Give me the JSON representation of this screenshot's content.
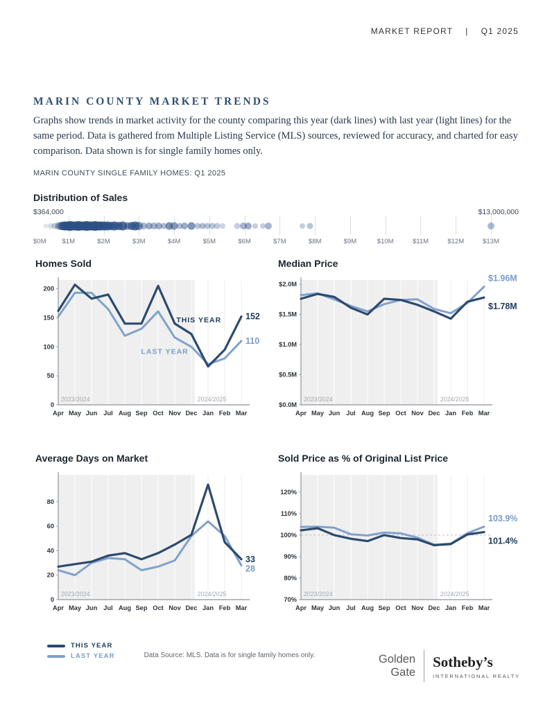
{
  "header": {
    "report_label": "MARKET REPORT",
    "divider": "|",
    "quarter": "Q1 2025"
  },
  "intro": {
    "title": "MARIN COUNTY MARKET TRENDS",
    "body": "Graphs show trends in market activity for the county comparing this year (dark lines) with last year (light lines) for the same period. Data is gathered from Multiple Listing Service (MLS) sources, reviewed for accuracy, and charted for easy comparison. Data shown is for single family homes only."
  },
  "subhead": "MARIN COUNTY SINGLE FAMILY HOMES: Q1 2025",
  "colors": {
    "this_line": "#2c4a6e",
    "this_text": "#1d3a5c",
    "last_line": "#80a1cc",
    "last_text": "#7a9cc8",
    "dot": "#2d4f86",
    "band": "#efefef",
    "axis": "#9fa4a9",
    "grid_white": "#ffffff",
    "grid_gray": "#ececec",
    "tick_text": "#2d3238",
    "year_text": "#a3a7ac",
    "dashed": "#babdc1"
  },
  "months": [
    "Apr",
    "May",
    "Jun",
    "Jul",
    "Aug",
    "Sep",
    "Oct",
    "Nov",
    "Dec",
    "Jan",
    "Feb",
    "Mar"
  ],
  "distribution": {
    "title": "Distribution of Sales",
    "min_label": "$364,000",
    "max_label": "$13,000,000",
    "axis_ticks": [
      "$0M",
      "$1M",
      "$2M",
      "$3M",
      "$4M",
      "$5M",
      "$6M",
      "$7M",
      "$8M",
      "$9M",
      "$10M",
      "$11M",
      "$12M",
      "$13M"
    ],
    "dots": [
      [
        0.36,
        7,
        0.15
      ],
      [
        0.5,
        8,
        0.2
      ],
      [
        0.62,
        9,
        0.3
      ],
      [
        0.72,
        11,
        0.5
      ],
      [
        0.8,
        12,
        0.75
      ],
      [
        0.88,
        13,
        0.9
      ],
      [
        0.96,
        13,
        0.92
      ],
      [
        1.04,
        14,
        0.95
      ],
      [
        1.12,
        13,
        0.92
      ],
      [
        1.2,
        13,
        0.95
      ],
      [
        1.28,
        14,
        0.92
      ],
      [
        1.36,
        13,
        0.95
      ],
      [
        1.44,
        13,
        0.9
      ],
      [
        1.52,
        14,
        0.92
      ],
      [
        1.6,
        13,
        0.95
      ],
      [
        1.68,
        13,
        0.9
      ],
      [
        1.76,
        14,
        0.9
      ],
      [
        1.84,
        13,
        0.88
      ],
      [
        1.92,
        13,
        0.9
      ],
      [
        2.0,
        13,
        0.85
      ],
      [
        2.1,
        13,
        0.82
      ],
      [
        2.2,
        12,
        0.8
      ],
      [
        2.3,
        13,
        0.85
      ],
      [
        2.42,
        12,
        0.78
      ],
      [
        2.55,
        13,
        0.82
      ],
      [
        2.68,
        11,
        0.6
      ],
      [
        2.8,
        12,
        0.72
      ],
      [
        2.9,
        13,
        0.78
      ],
      [
        3.0,
        12,
        0.6
      ],
      [
        3.14,
        10,
        0.42
      ],
      [
        3.28,
        10,
        0.48
      ],
      [
        3.42,
        10,
        0.42
      ],
      [
        3.56,
        10,
        0.46
      ],
      [
        3.7,
        9,
        0.38
      ],
      [
        3.86,
        11,
        0.62
      ],
      [
        4.0,
        11,
        0.56
      ],
      [
        4.16,
        9,
        0.38
      ],
      [
        4.3,
        10,
        0.46
      ],
      [
        4.5,
        11,
        0.6
      ],
      [
        4.66,
        9,
        0.34
      ],
      [
        4.8,
        9,
        0.38
      ],
      [
        4.95,
        9,
        0.34
      ],
      [
        5.08,
        9,
        0.33
      ],
      [
        5.22,
        9,
        0.3
      ],
      [
        5.38,
        8,
        0.25
      ],
      [
        5.8,
        9,
        0.28
      ],
      [
        5.96,
        10,
        0.42
      ],
      [
        6.1,
        10,
        0.46
      ],
      [
        6.3,
        8,
        0.28
      ],
      [
        6.52,
        8,
        0.28
      ],
      [
        6.68,
        10,
        0.42
      ],
      [
        7.65,
        8,
        0.28
      ],
      [
        7.85,
        9,
        0.33
      ],
      [
        13.0,
        10,
        0.4
      ]
    ]
  },
  "chart_data": [
    {
      "type": "line",
      "title": "Homes Sold",
      "ymin": 0,
      "ymax": 215,
      "yticks": [
        {
          "v": 0,
          "label": "0"
        },
        {
          "v": 50,
          "label": "50"
        },
        {
          "v": 100,
          "label": "100"
        },
        {
          "v": 150,
          "label": "150"
        },
        {
          "v": 200,
          "label": "200"
        }
      ],
      "series": [
        {
          "name": "THIS YEAR",
          "key": "this",
          "values": [
            162,
            207,
            183,
            190,
            140,
            140,
            205,
            140,
            122,
            66,
            95,
            152
          ]
        },
        {
          "name": "LAST YEAR",
          "key": "last",
          "values": [
            152,
            193,
            193,
            165,
            119,
            131,
            161,
            116,
            100,
            70,
            80,
            110
          ]
        }
      ],
      "annotations": [
        {
          "text": "THIS YEAR",
          "series": "this",
          "month": 8.45,
          "value": 142
        },
        {
          "text": "LAST YEAR",
          "series": "last",
          "month": 6.4,
          "value": 88
        }
      ],
      "end_labels": [
        {
          "series": "this",
          "text": "152",
          "dy": 4
        },
        {
          "series": "last",
          "text": "110",
          "dy": 4
        }
      ],
      "year_labels": [
        "2023/2024",
        "2024/2025"
      ],
      "shade_end": 8.2
    },
    {
      "type": "line",
      "title": "Median Price",
      "ymin": 0,
      "ymax": 2.07,
      "yticks": [
        {
          "v": 0,
          "label": "$0.0M"
        },
        {
          "v": 0.5,
          "label": "$0.5M"
        },
        {
          "v": 1,
          "label": "$1.0M"
        },
        {
          "v": 1.5,
          "label": "$1.5M"
        },
        {
          "v": 2,
          "label": "$2.0M"
        }
      ],
      "series": [
        {
          "name": "THIS YEAR",
          "key": "this",
          "values": [
            1.76,
            1.84,
            1.79,
            1.61,
            1.5,
            1.76,
            1.74,
            1.66,
            1.55,
            1.43,
            1.71,
            1.78
          ]
        },
        {
          "name": "LAST YEAR",
          "key": "last",
          "values": [
            1.82,
            1.85,
            1.75,
            1.64,
            1.55,
            1.67,
            1.74,
            1.75,
            1.59,
            1.52,
            1.69,
            1.96
          ]
        }
      ],
      "annotations": [],
      "end_labels": [
        {
          "series": "last",
          "text": "$1.96M",
          "dy": -8
        },
        {
          "series": "this",
          "text": "$1.78M",
          "dy": 17
        }
      ],
      "year_labels": [
        "2023/2024",
        "2024/2025"
      ],
      "shade_end": 8.2
    },
    {
      "type": "line",
      "title": "Average Days on Market",
      "ymin": 0,
      "ymax": 102,
      "yticks": [
        {
          "v": 0,
          "label": "0"
        },
        {
          "v": 20,
          "label": "20"
        },
        {
          "v": 40,
          "label": "40"
        },
        {
          "v": 60,
          "label": "60"
        },
        {
          "v": 80,
          "label": "80"
        }
      ],
      "series": [
        {
          "name": "THIS YEAR",
          "key": "this",
          "values": [
            27,
            29,
            31,
            36,
            38,
            33,
            38,
            45,
            53,
            94,
            47,
            33
          ]
        },
        {
          "name": "LAST YEAR",
          "key": "last",
          "values": [
            24,
            20,
            30,
            34,
            33,
            24,
            27,
            32,
            52,
            64,
            52,
            28
          ]
        }
      ],
      "annotations": [],
      "end_labels": [
        {
          "series": "this",
          "text": "33",
          "dy": 4
        },
        {
          "series": "last",
          "text": "28",
          "dy": 9
        }
      ],
      "year_labels": [
        "2023/2024",
        "2024/2025"
      ],
      "shade_end": 8.2
    },
    {
      "type": "line",
      "title": "Sold Price as % of Original List Price",
      "ymin": 70,
      "ymax": 128,
      "dashed_at": 100,
      "yticks": [
        {
          "v": 70,
          "label": "70%"
        },
        {
          "v": 80,
          "label": "80%"
        },
        {
          "v": 90,
          "label": "90%"
        },
        {
          "v": 100,
          "label": "100%"
        },
        {
          "v": 110,
          "label": "110%"
        },
        {
          "v": 120,
          "label": "120%"
        }
      ],
      "series": [
        {
          "name": "THIS YEAR",
          "key": "this",
          "values": [
            102.2,
            103.2,
            100.0,
            98.3,
            97.2,
            100.0,
            98.6,
            98.0,
            95.3,
            95.8,
            100.3,
            101.4
          ]
        },
        {
          "name": "LAST YEAR",
          "key": "last",
          "values": [
            103.8,
            103.9,
            103.4,
            100.4,
            99.8,
            101.2,
            100.8,
            98.8,
            95.5,
            96.0,
            100.9,
            103.9
          ]
        }
      ],
      "annotations": [],
      "end_labels": [
        {
          "series": "last",
          "text": "103.9%",
          "dy": -8
        },
        {
          "series": "this",
          "text": "101.4%",
          "dy": 17
        }
      ],
      "year_labels": [
        "2023/2024",
        "2024/2025"
      ],
      "shade_end": 8.2
    }
  ],
  "legend": {
    "this_year": "THIS YEAR",
    "last_year": "LAST YEAR",
    "source": "Data Source: MLS. Data is for single family homes only."
  },
  "logo": {
    "brand_top": "Golden",
    "brand_bottom": "Gate",
    "name": "Sotheby’s",
    "subtitle": "INTERNATIONAL REALTY"
  }
}
